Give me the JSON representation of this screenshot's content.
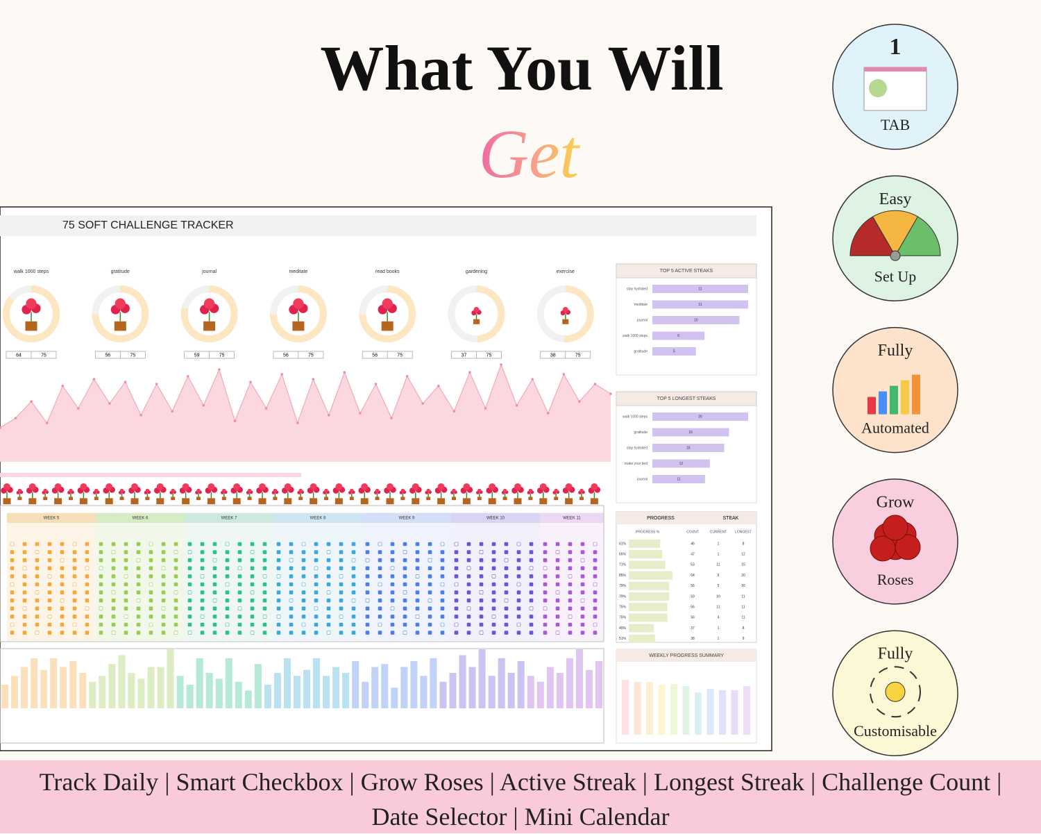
{
  "header": {
    "title": "What You Will",
    "script": "Get"
  },
  "tracker": {
    "title": "75 SOFT CHALLENGE TRACKER",
    "habits": [
      {
        "name": "walk 1000 steps",
        "count": 64,
        "goal": 75
      },
      {
        "name": "gratitude",
        "count": 56,
        "goal": 75
      },
      {
        "name": "journal",
        "count": 59,
        "goal": 75
      },
      {
        "name": "meditate",
        "count": 56,
        "goal": 75
      },
      {
        "name": "read books",
        "count": 56,
        "goal": 75
      },
      {
        "name": "gardening",
        "count": 37,
        "goal": 75
      },
      {
        "name": "exercise",
        "count": 38,
        "goal": 75
      }
    ],
    "trend": {
      "ylim": [
        0,
        100
      ],
      "values": [
        35,
        45,
        62,
        40,
        78,
        55,
        85,
        60,
        82,
        48,
        80,
        52,
        88,
        58,
        95,
        42,
        82,
        55,
        90,
        40,
        85,
        48,
        92,
        50,
        80,
        45,
        88,
        60,
        78,
        52,
        92,
        55,
        100,
        58,
        85,
        50,
        90,
        62,
        80,
        70
      ]
    },
    "active_streaks": {
      "title": "TOP 5 ACTIVE STEAKS",
      "xlim": [
        0,
        11
      ],
      "items": [
        {
          "label": "stay hydrated",
          "value": 11
        },
        {
          "label": "meditate",
          "value": 11
        },
        {
          "label": "journal",
          "value": 10
        },
        {
          "label": "walk 1000 steps",
          "value": 6
        },
        {
          "label": "gratitude",
          "value": 5
        }
      ]
    },
    "longest_streaks": {
      "title": "TOP 5 LONGEST STEAKS",
      "xlim": [
        0,
        20
      ],
      "items": [
        {
          "label": "walk 1000 steps",
          "value": 20
        },
        {
          "label": "gratitude",
          "value": 16
        },
        {
          "label": "stay hydrated",
          "value": 15
        },
        {
          "label": "make your bed",
          "value": 12
        },
        {
          "label": "journal",
          "value": 11
        }
      ]
    },
    "weeks": [
      "WEEK 5",
      "WEEK 6",
      "WEEK 7",
      "WEEK 8",
      "WEEK 9",
      "WEEK 10",
      "WEEK 11"
    ],
    "progress_table": {
      "headers": [
        "PROGRESS",
        "STEAK"
      ],
      "columns": [
        "PROGRESS %",
        "COUNT",
        "CURRENT",
        "LONGEST"
      ],
      "rows": [
        [
          "61%",
          46,
          1,
          8
        ],
        [
          "65%",
          47,
          1,
          12
        ],
        [
          "71%",
          53,
          11,
          15
        ],
        [
          "85%",
          64,
          6,
          20
        ],
        [
          "79%",
          56,
          5,
          16
        ],
        [
          "79%",
          59,
          10,
          11
        ],
        [
          "75%",
          56,
          11,
          11
        ],
        [
          "75%",
          56,
          4,
          11
        ],
        [
          "49%",
          37,
          1,
          8
        ],
        [
          "51%",
          38,
          1,
          9
        ]
      ],
      "percent": [
        61,
        65,
        71,
        85,
        79,
        79,
        75,
        75,
        49,
        51
      ]
    },
    "weekly_summary": {
      "title": "WEEKLY PROGRESS SUMMARY",
      "ylim": [
        0,
        100
      ],
      "values": [
        79,
        76,
        76,
        72,
        73,
        70,
        61,
        66,
        64,
        64,
        70
      ]
    },
    "daily_bars": {
      "ylim": [
        0,
        100
      ],
      "values": [
        40,
        55,
        70,
        85,
        65,
        85,
        70,
        80,
        60,
        45,
        55,
        75,
        90,
        60,
        50,
        70,
        70,
        100,
        55,
        40,
        85,
        60,
        50,
        85,
        45,
        30,
        75,
        40,
        60,
        85,
        55,
        65,
        85,
        55,
        70,
        60,
        80,
        45,
        70,
        75,
        35,
        70,
        80,
        55,
        85,
        45,
        60,
        90,
        70,
        100,
        55,
        85,
        60,
        80,
        55,
        45,
        70,
        60,
        85,
        100,
        65,
        80
      ]
    }
  },
  "badges": [
    {
      "top": "1",
      "bottom": "TAB"
    },
    {
      "top": "Easy",
      "bottom": "Set Up"
    },
    {
      "top": "Fully",
      "bottom": "Automated"
    },
    {
      "top": "Grow",
      "bottom": "Roses"
    },
    {
      "top": "Fully",
      "bottom": "Customisable"
    }
  ],
  "footer": "Track Daily | Smart Checkbox | Grow Roses | Active Streak | Longest Streak | Challenge Count | Date Selector | Mini Calendar"
}
